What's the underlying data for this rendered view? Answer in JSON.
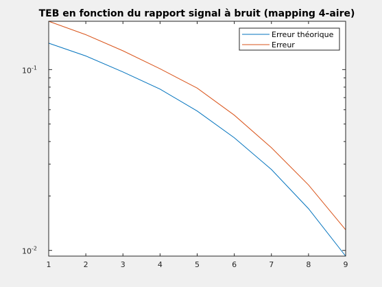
{
  "chart_data": {
    "type": "line",
    "title": "TEB en fonction du rapport signal à bruit (mapping 4-aire)",
    "xlabel": "",
    "ylabel": "",
    "xlim": [
      1,
      9
    ],
    "ylim": [
      0.0093,
      0.185
    ],
    "yscale": "log",
    "x_ticks": [
      "1",
      "2",
      "3",
      "4",
      "5",
      "6",
      "7",
      "8",
      "9"
    ],
    "y_ticks": [
      {
        "base": "10",
        "exp": "-1",
        "value": 0.1
      },
      {
        "base": "10",
        "exp": "-2",
        "value": 0.01
      }
    ],
    "x": [
      1,
      2,
      3,
      4,
      5,
      6,
      7,
      8,
      9
    ],
    "series": [
      {
        "name": "Erreur théorique",
        "color": "#0072bd",
        "values": [
          0.14,
          0.119,
          0.097,
          0.078,
          0.059,
          0.042,
          0.028,
          0.017,
          0.0093
        ]
      },
      {
        "name": "Erreur",
        "color": "#d95319",
        "values": [
          0.185,
          0.156,
          0.127,
          0.101,
          0.079,
          0.056,
          0.037,
          0.023,
          0.013
        ]
      }
    ],
    "grid": false,
    "legend_position": "top-right"
  },
  "colors": {
    "background": "#f0f0f0",
    "axes_background": "#ffffff",
    "axis": "#262626"
  }
}
